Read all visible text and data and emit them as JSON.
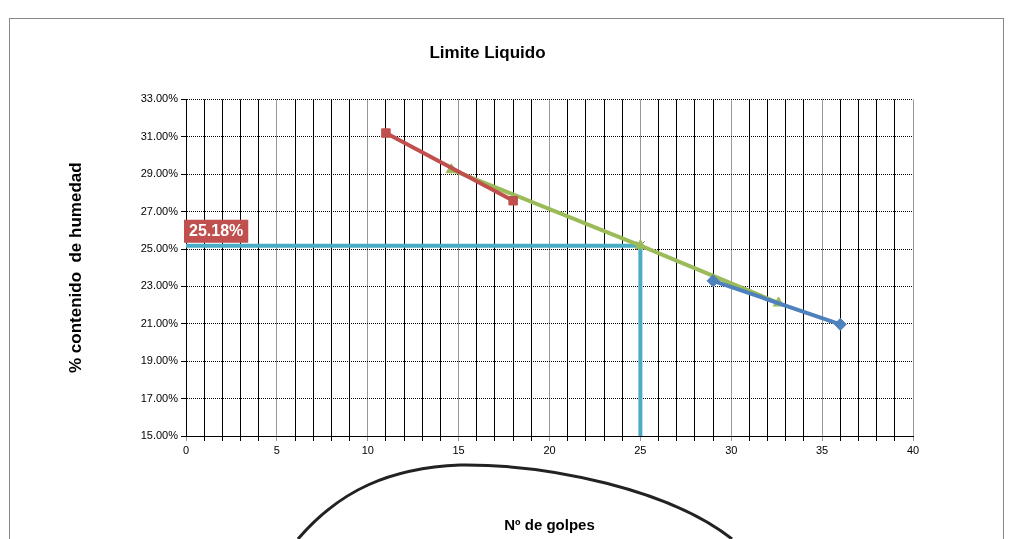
{
  "chart_data": {
    "type": "scatter",
    "title": "Limite Liquido",
    "xlabel": "Nº de golpes",
    "ylabel": "% contenido  de humedad",
    "series": [
      {
        "type": "line",
        "color": "#c0504d",
        "marker": "square",
        "x": [
          11,
          18
        ],
        "values": [
          31.2,
          27.58
        ]
      },
      {
        "type": "line",
        "color": "#4f81bd",
        "marker": "diamond",
        "x": [
          29,
          36
        ],
        "values": [
          23.3,
          20.97
        ]
      },
      {
        "type": "line",
        "color": "#9bbb59",
        "marker": "triangle",
        "x": [
          14.6,
          25,
          32.6
        ],
        "values": [
          29.24,
          25.18,
          22.11
        ]
      },
      {
        "type": "line",
        "color": "#4bacc6",
        "marker": "none",
        "x": [
          0,
          25,
          25
        ],
        "values": [
          25.18,
          25.18,
          15
        ]
      },
      {
        "type": "scatter",
        "color": "#8064a2",
        "marker": "cross",
        "x": [
          25
        ],
        "values": [
          25.18
        ]
      }
    ],
    "annotations": [
      {
        "text": "25.18%",
        "x": 0,
        "y": 25.18
      }
    ],
    "xlim": [
      0,
      40
    ],
    "xticks": [
      0,
      {
        "value": 1,
        "label": null
      },
      {
        "value": 2,
        "label": null
      },
      {
        "value": 3,
        "label": null
      },
      {
        "value": 4,
        "label": null
      },
      5,
      {
        "value": 6,
        "label": null
      },
      {
        "value": 7,
        "label": null
      },
      {
        "value": 8,
        "label": null
      },
      {
        "value": 9,
        "label": null
      },
      10,
      {
        "value": 11,
        "label": null
      },
      {
        "value": 12,
        "label": null
      },
      {
        "value": 13,
        "label": null
      },
      {
        "value": 14,
        "label": null
      },
      15,
      {
        "value": 16,
        "label": null
      },
      {
        "value": 17,
        "label": null
      },
      {
        "value": 18,
        "label": null
      },
      {
        "value": 19,
        "label": null
      },
      20,
      {
        "value": 21,
        "label": null
      },
      {
        "value": 22,
        "label": null
      },
      {
        "value": 23,
        "label": null
      },
      {
        "value": 24,
        "label": null
      },
      25,
      {
        "value": 26,
        "label": null
      },
      {
        "value": 27,
        "label": null
      },
      {
        "value": 28,
        "label": null
      },
      {
        "value": 29,
        "label": null
      },
      30,
      {
        "value": 31,
        "label": null
      },
      {
        "value": 32,
        "label": null
      },
      {
        "value": 33,
        "label": null
      },
      {
        "value": 34,
        "label": null
      },
      35,
      {
        "value": 36,
        "label": null
      },
      {
        "value": 37,
        "label": null
      },
      {
        "value": 38,
        "label": null
      },
      {
        "value": 39,
        "label": null
      },
      40
    ],
    "ylim": [
      15,
      33
    ],
    "yticks": [
      {
        "value": 15,
        "label": "15.00%"
      },
      {
        "value": 17,
        "label": "17.00%"
      },
      {
        "value": 19,
        "label": "19.00%"
      },
      {
        "value": 21,
        "label": "21.00%"
      },
      {
        "value": 23,
        "label": "23.00%"
      },
      {
        "value": 25,
        "label": "25.00%"
      },
      {
        "value": 27,
        "label": "27.00%"
      },
      {
        "value": 29,
        "label": "29.00%"
      },
      {
        "value": 31,
        "label": "31.00%"
      },
      {
        "value": 33,
        "label": "33.00%"
      }
    ],
    "grid": true,
    "legend": false
  }
}
